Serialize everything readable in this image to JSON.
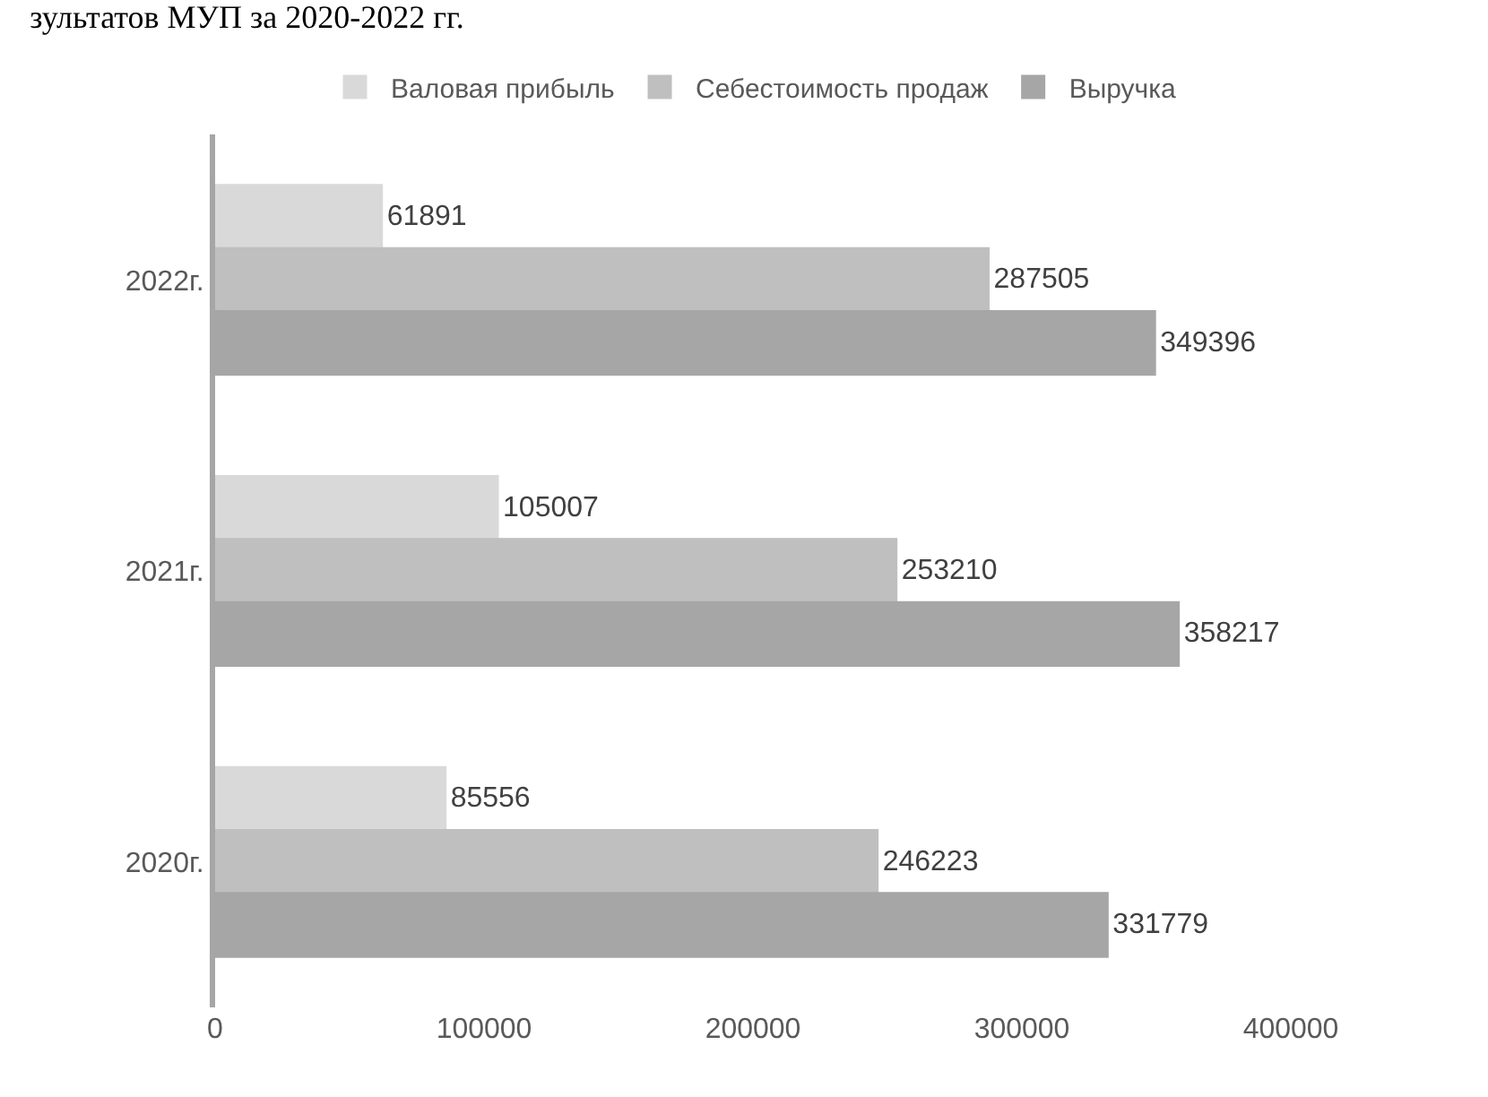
{
  "chart_data": {
    "type": "bar",
    "orientation": "horizontal",
    "title": "зультатов МУП за 2020-2022 гг.",
    "categories": [
      "2022г.",
      "2021г.",
      "2020г."
    ],
    "series": [
      {
        "name": "Валовая прибыль",
        "color": "#d9d9d9",
        "values": [
          61891,
          105007,
          85556
        ]
      },
      {
        "name": "Себестоимость продаж",
        "color": "#bfbfbf",
        "values": [
          287505,
          253210,
          246223
        ]
      },
      {
        "name": "Выручка",
        "color": "#a6a6a6",
        "values": [
          349396,
          358217,
          331779
        ]
      }
    ],
    "xlim": [
      0,
      400000
    ],
    "xticks": [
      0,
      100000,
      200000,
      300000,
      400000
    ],
    "data_labels": true,
    "legend": "top"
  }
}
